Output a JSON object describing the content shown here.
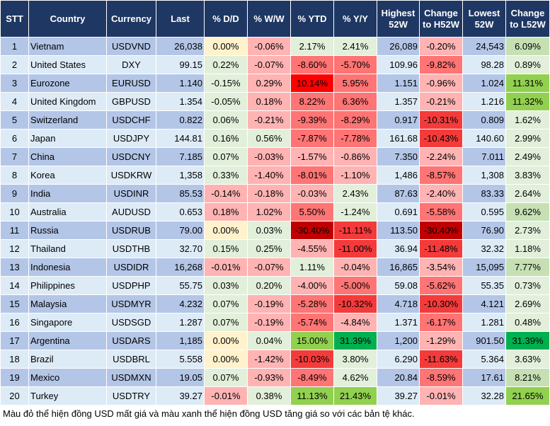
{
  "headers": [
    "STT",
    "Country",
    "Currency",
    "Last",
    "% D/D",
    "% W/W",
    "% YTD",
    "% Y/Y",
    "Highest 52W",
    "Change to H52W",
    "Lowest 52W",
    "Change to L52W"
  ],
  "palette": {
    "odd": "#b4c6e7",
    "even": "#ddebf7",
    "y": "#fff2cc",
    "g": "#e2efda",
    "p": "#ffb3b3",
    "r1": "#ff7474",
    "r2": "#f43b3b",
    "r3": "#c00000",
    "R": "#ff0000",
    "G1": "#c6e0b4",
    "G2": "#92d050",
    "G3": "#00b050"
  },
  "rows": [
    {
      "stt": "1",
      "country": "Vietnam",
      "currency": "USDVND",
      "last": "26,038",
      "dd": "0.00%",
      "ww": "-0.06%",
      "ytd": "2.17%",
      "yy": "2.41%",
      "h52": "26,089",
      "ch52": "-0.20%",
      "l52": "24,543",
      "cl52": "6.09%",
      "colors": [
        "y",
        "p",
        "g",
        "g",
        "p",
        "G1"
      ]
    },
    {
      "stt": "2",
      "country": "United States",
      "currency": "DXY",
      "last": "99.15",
      "dd": "0.22%",
      "ww": "-0.07%",
      "ytd": "-8.60%",
      "yy": "-5.70%",
      "h52": "109.96",
      "ch52": "-9.82%",
      "l52": "98.28",
      "cl52": "0.89%",
      "colors": [
        "g",
        "p",
        "r1",
        "r1",
        "r1",
        "g"
      ]
    },
    {
      "stt": "3",
      "country": "Eurozone",
      "currency": "EURUSD",
      "last": "1.140",
      "dd": "-0.15%",
      "ww": "0.29%",
      "ytd": "10.14%",
      "yy": "5.95%",
      "h52": "1.151",
      "ch52": "-0.96%",
      "l52": "1.024",
      "cl52": "11.31%",
      "colors": [
        "g",
        "p",
        "R",
        "r1",
        "p",
        "G2"
      ]
    },
    {
      "stt": "4",
      "country": "United Kingdom",
      "currency": "GBPUSD",
      "last": "1.354",
      "dd": "-0.05%",
      "ww": "0.18%",
      "ytd": "8.22%",
      "yy": "6.36%",
      "h52": "1.357",
      "ch52": "-0.21%",
      "l52": "1.216",
      "cl52": "11.32%",
      "colors": [
        "g",
        "p",
        "r1",
        "r1",
        "p",
        "G2"
      ]
    },
    {
      "stt": "5",
      "country": "Switzerland",
      "currency": "USDCHF",
      "last": "0.822",
      "dd": "0.06%",
      "ww": "-0.21%",
      "ytd": "-9.39%",
      "yy": "-8.29%",
      "h52": "0.917",
      "ch52": "-10.31%",
      "l52": "0.809",
      "cl52": "1.62%",
      "colors": [
        "g",
        "p",
        "r1",
        "r1",
        "r2",
        "g"
      ]
    },
    {
      "stt": "6",
      "country": "Japan",
      "currency": "USDJPY",
      "last": "144.81",
      "dd": "0.16%",
      "ww": "0.56%",
      "ytd": "-7.87%",
      "yy": "-7.78%",
      "h52": "161.68",
      "ch52": "-10.43%",
      "l52": "140.60",
      "cl52": "2.99%",
      "colors": [
        "g",
        "g",
        "r1",
        "r1",
        "r2",
        "g"
      ]
    },
    {
      "stt": "7",
      "country": "China",
      "currency": "USDCNY",
      "last": "7.185",
      "dd": "0.07%",
      "ww": "-0.03%",
      "ytd": "-1.57%",
      "yy": "-0.86%",
      "h52": "7.350",
      "ch52": "-2.24%",
      "l52": "7.011",
      "cl52": "2.49%",
      "colors": [
        "g",
        "p",
        "p",
        "p",
        "p",
        "g"
      ]
    },
    {
      "stt": "8",
      "country": "Korea",
      "currency": "USDKRW",
      "last": "1,358",
      "dd": "0.33%",
      "ww": "-1.40%",
      "ytd": "-8.01%",
      "yy": "-1.10%",
      "h52": "1,486",
      "ch52": "-8.57%",
      "l52": "1,308",
      "cl52": "3.83%",
      "colors": [
        "g",
        "p",
        "r1",
        "p",
        "r1",
        "g"
      ]
    },
    {
      "stt": "9",
      "country": "India",
      "currency": "USDINR",
      "last": "85.53",
      "dd": "-0.14%",
      "ww": "-0.18%",
      "ytd": "-0.03%",
      "yy": "2.43%",
      "h52": "87.63",
      "ch52": "-2.40%",
      "l52": "83.33",
      "cl52": "2.64%",
      "colors": [
        "p",
        "p",
        "p",
        "g",
        "p",
        "g"
      ]
    },
    {
      "stt": "10",
      "country": "Australia",
      "currency": "AUDUSD",
      "last": "0.653",
      "dd": "0.18%",
      "ww": "1.02%",
      "ytd": "5.50%",
      "yy": "-1.24%",
      "h52": "0.691",
      "ch52": "-5.58%",
      "l52": "0.595",
      "cl52": "9.62%",
      "colors": [
        "p",
        "p",
        "r1",
        "g",
        "r1",
        "G1"
      ]
    },
    {
      "stt": "11",
      "country": "Russia",
      "currency": "USDRUB",
      "last": "79.00",
      "dd": "0.00%",
      "ww": "0.03%",
      "ytd": "-30.40%",
      "yy": "-11.11%",
      "h52": "113.50",
      "ch52": "-30.40%",
      "l52": "76.90",
      "cl52": "2.73%",
      "colors": [
        "y",
        "g",
        "r3",
        "r2",
        "r3",
        "g"
      ]
    },
    {
      "stt": "12",
      "country": "Thailand",
      "currency": "USDTHB",
      "last": "32.70",
      "dd": "0.15%",
      "ww": "0.25%",
      "ytd": "-4.55%",
      "yy": "-11.00%",
      "h52": "36.94",
      "ch52": "-11.48%",
      "l52": "32.32",
      "cl52": "1.18%",
      "colors": [
        "g",
        "g",
        "p",
        "r2",
        "r2",
        "g"
      ]
    },
    {
      "stt": "13",
      "country": "Indonesia",
      "currency": "USDIDR",
      "last": "16,268",
      "dd": "-0.01%",
      "ww": "-0.07%",
      "ytd": "1.11%",
      "yy": "-0.04%",
      "h52": "16,865",
      "ch52": "-3.54%",
      "l52": "15,095",
      "cl52": "7.77%",
      "colors": [
        "p",
        "p",
        "g",
        "p",
        "p",
        "G1"
      ]
    },
    {
      "stt": "14",
      "country": "Philippines",
      "currency": "USDPHP",
      "last": "55.75",
      "dd": "0.03%",
      "ww": "0.20%",
      "ytd": "-4.00%",
      "yy": "-5.00%",
      "h52": "59.08",
      "ch52": "-5.62%",
      "l52": "55.35",
      "cl52": "0.73%",
      "colors": [
        "g",
        "g",
        "p",
        "r1",
        "r1",
        "g"
      ]
    },
    {
      "stt": "15",
      "country": "Malaysia",
      "currency": "USDMYR",
      "last": "4.232",
      "dd": "0.07%",
      "ww": "-0.19%",
      "ytd": "-5.28%",
      "yy": "-10.32%",
      "h52": "4.718",
      "ch52": "-10.30%",
      "l52": "4.121",
      "cl52": "2.69%",
      "colors": [
        "g",
        "p",
        "r1",
        "r2",
        "r2",
        "g"
      ]
    },
    {
      "stt": "16",
      "country": "Singapore",
      "currency": "USDSGD",
      "last": "1.287",
      "dd": "0.07%",
      "ww": "-0.19%",
      "ytd": "-5.74%",
      "yy": "-4.84%",
      "h52": "1.371",
      "ch52": "-6.17%",
      "l52": "1.281",
      "cl52": "0.48%",
      "colors": [
        "g",
        "p",
        "r1",
        "p",
        "r1",
        "g"
      ]
    },
    {
      "stt": "17",
      "country": "Argentina",
      "currency": "USDARS",
      "last": "1,185",
      "dd": "0.00%",
      "ww": "0.04%",
      "ytd": "15.00%",
      "yy": "31.39%",
      "h52": "1,200",
      "ch52": "-1.29%",
      "l52": "901.50",
      "cl52": "31.39%",
      "colors": [
        "y",
        "g",
        "G2",
        "G3",
        "p",
        "G3"
      ]
    },
    {
      "stt": "18",
      "country": "Brazil",
      "currency": "USDBRL",
      "last": "5.558",
      "dd": "0.00%",
      "ww": "-1.42%",
      "ytd": "-10.03%",
      "yy": "3.80%",
      "h52": "6.290",
      "ch52": "-11.63%",
      "l52": "5.364",
      "cl52": "3.63%",
      "colors": [
        "y",
        "p",
        "r2",
        "g",
        "r2",
        "g"
      ]
    },
    {
      "stt": "19",
      "country": "Mexico",
      "currency": "USDMXN",
      "last": "19.05",
      "dd": "0.07%",
      "ww": "-0.93%",
      "ytd": "-8.49%",
      "yy": "4.62%",
      "h52": "20.84",
      "ch52": "-8.59%",
      "l52": "17.61",
      "cl52": "8.21%",
      "colors": [
        "g",
        "p",
        "r1",
        "g",
        "r1",
        "G1"
      ]
    },
    {
      "stt": "20",
      "country": "Turkey",
      "currency": "USDTRY",
      "last": "39.27",
      "dd": "-0.01%",
      "ww": "0.38%",
      "ytd": "11.13%",
      "yy": "21.43%",
      "h52": "39.27",
      "ch52": "-0.01%",
      "l52": "32.28",
      "cl52": "21.65%",
      "colors": [
        "p",
        "g",
        "G2",
        "G2",
        "p",
        "G2"
      ]
    }
  ],
  "footnote": "Màu đỏ thể hiện đồng USD mất giá và màu xanh thể hiện đồng USD tăng giá so với các bản tệ khác."
}
